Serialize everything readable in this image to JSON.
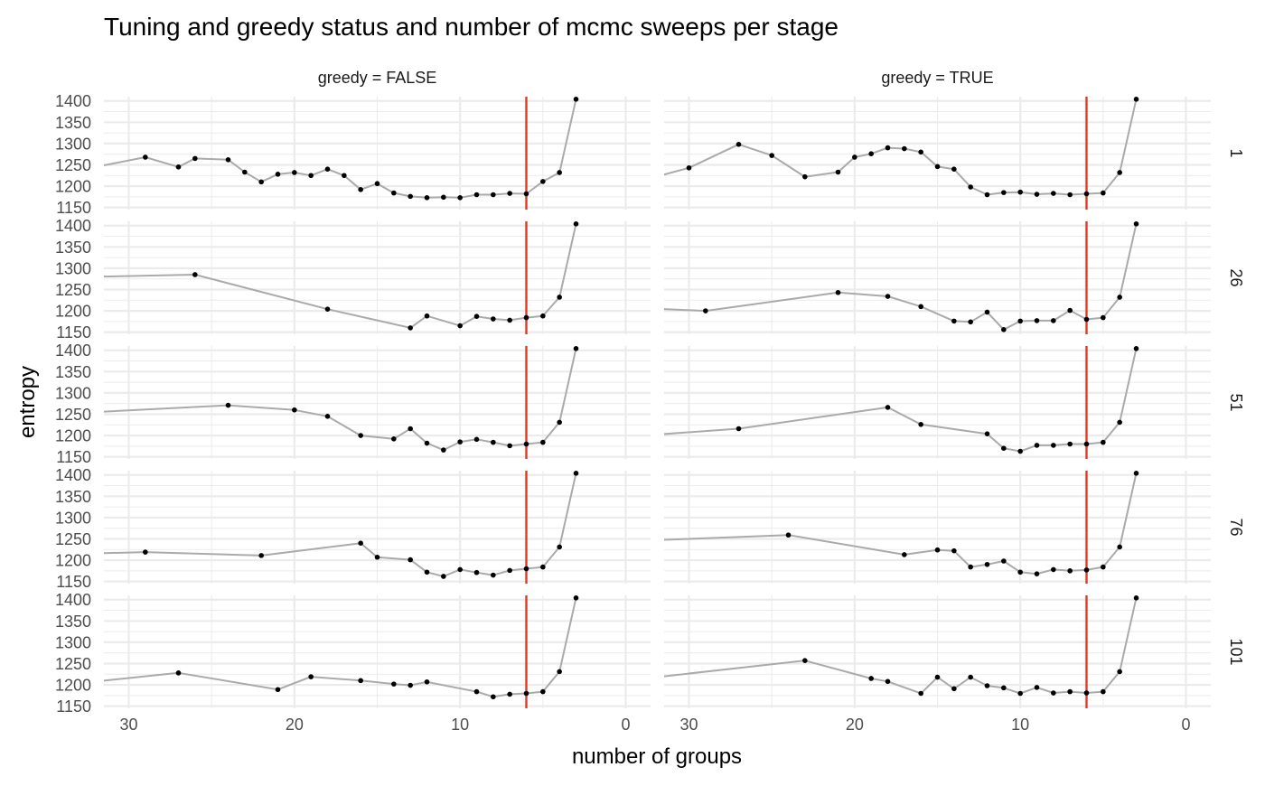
{
  "chart_data": {
    "type": "line",
    "title": "Tuning and greedy status and number of mcmc sweeps per stage",
    "xlabel": "number of groups",
    "ylabel": "entropy",
    "x_reversed": true,
    "xlim": [
      31.5,
      -1.5
    ],
    "ylim": [
      1145,
      1410
    ],
    "x_ticks": [
      30,
      20,
      10,
      0
    ],
    "y_ticks": [
      1150,
      1200,
      1250,
      1300,
      1350,
      1400
    ],
    "grid": true,
    "vline_x": 6,
    "colors": {
      "line": "#aaaaaa",
      "point": "#000000",
      "vline": "#e8361f",
      "grid": "#ebebeb"
    },
    "col_facet_labels": [
      "greedy =  FALSE",
      "greedy =  TRUE"
    ],
    "row_facet_labels": [
      "1",
      "26",
      "51",
      "76",
      "101"
    ],
    "panels": [
      {
        "greedy": "FALSE",
        "sweeps": "1",
        "x": [
          32,
          29,
          27,
          26,
          24,
          23,
          22,
          21,
          20,
          19,
          18,
          17,
          16,
          15,
          14,
          13,
          12,
          11,
          10,
          9,
          8,
          7,
          6,
          5,
          4,
          3
        ],
        "y": [
          1245,
          1268,
          1245,
          1265,
          1262,
          1233,
          1210,
          1228,
          1232,
          1225,
          1240,
          1225,
          1192,
          1206,
          1184,
          1176,
          1173,
          1174,
          1173,
          1180,
          1180,
          1183,
          1182,
          1211,
          1232,
          1404
        ]
      },
      {
        "greedy": "TRUE",
        "sweeps": "1",
        "x": [
          32,
          30,
          27,
          25,
          23,
          21,
          20,
          19,
          18,
          17,
          16,
          15,
          14,
          13,
          12,
          11,
          10,
          9,
          8,
          7,
          6,
          5,
          4,
          3
        ],
        "y": [
          1222,
          1243,
          1298,
          1272,
          1222,
          1233,
          1268,
          1276,
          1290,
          1288,
          1280,
          1246,
          1240,
          1198,
          1180,
          1185,
          1186,
          1181,
          1183,
          1180,
          1182,
          1184,
          1232,
          1404
        ]
      },
      {
        "greedy": "FALSE",
        "sweeps": "26",
        "x": [
          32,
          26,
          18,
          13,
          12,
          10,
          9,
          8,
          7,
          6,
          5,
          4,
          3
        ],
        "y": [
          1280,
          1285,
          1204,
          1160,
          1188,
          1165,
          1187,
          1181,
          1178,
          1184,
          1188,
          1232,
          1404
        ]
      },
      {
        "greedy": "TRUE",
        "sweeps": "26",
        "x": [
          32,
          29,
          21,
          18,
          16,
          14,
          13,
          12,
          11,
          10,
          9,
          8,
          7,
          6,
          5,
          4,
          3
        ],
        "y": [
          1205,
          1200,
          1243,
          1234,
          1210,
          1176,
          1174,
          1197,
          1156,
          1176,
          1177,
          1177,
          1201,
          1180,
          1184,
          1232,
          1404
        ]
      },
      {
        "greedy": "FALSE",
        "sweeps": "51",
        "x": [
          32,
          24,
          20,
          18,
          16,
          14,
          13,
          12,
          11,
          10,
          9,
          8,
          7,
          6,
          5,
          4,
          3
        ],
        "y": [
          1255,
          1271,
          1260,
          1245,
          1200,
          1192,
          1216,
          1182,
          1166,
          1185,
          1191,
          1184,
          1176,
          1180,
          1184,
          1231,
          1404
        ]
      },
      {
        "greedy": "TRUE",
        "sweeps": "51",
        "x": [
          32,
          27,
          18,
          16,
          12,
          11,
          10,
          9,
          8,
          7,
          6,
          5,
          4,
          3
        ],
        "y": [
          1202,
          1216,
          1266,
          1226,
          1204,
          1170,
          1163,
          1177,
          1177,
          1180,
          1180,
          1184,
          1231,
          1404
        ]
      },
      {
        "greedy": "FALSE",
        "sweeps": "76",
        "x": [
          32,
          29,
          22,
          16,
          15,
          13,
          12,
          11,
          10,
          9,
          8,
          7,
          6,
          5,
          4,
          3
        ],
        "y": [
          1216,
          1219,
          1211,
          1240,
          1207,
          1201,
          1172,
          1162,
          1178,
          1171,
          1165,
          1176,
          1180,
          1184,
          1231,
          1404
        ]
      },
      {
        "greedy": "TRUE",
        "sweeps": "76",
        "x": [
          32,
          24,
          17,
          15,
          14,
          13,
          12,
          11,
          10,
          9,
          8,
          7,
          6,
          5,
          4,
          3
        ],
        "y": [
          1247,
          1259,
          1213,
          1224,
          1222,
          1184,
          1190,
          1198,
          1172,
          1168,
          1178,
          1175,
          1177,
          1184,
          1231,
          1404
        ]
      },
      {
        "greedy": "FALSE",
        "sweeps": "101",
        "x": [
          32,
          27,
          21,
          19,
          16,
          14,
          13,
          12,
          9,
          8,
          7,
          6,
          5,
          4,
          3
        ],
        "y": [
          1208,
          1228,
          1189,
          1219,
          1210,
          1202,
          1199,
          1207,
          1184,
          1172,
          1178,
          1180,
          1184,
          1231,
          1404
        ]
      },
      {
        "greedy": "TRUE",
        "sweeps": "101",
        "x": [
          32,
          23,
          19,
          18,
          16,
          15,
          14,
          13,
          12,
          11,
          10,
          9,
          8,
          7,
          6,
          5,
          4,
          3
        ],
        "y": [
          1218,
          1257,
          1215,
          1208,
          1180,
          1218,
          1191,
          1218,
          1198,
          1193,
          1180,
          1194,
          1181,
          1184,
          1181,
          1184,
          1231,
          1404
        ]
      }
    ]
  }
}
